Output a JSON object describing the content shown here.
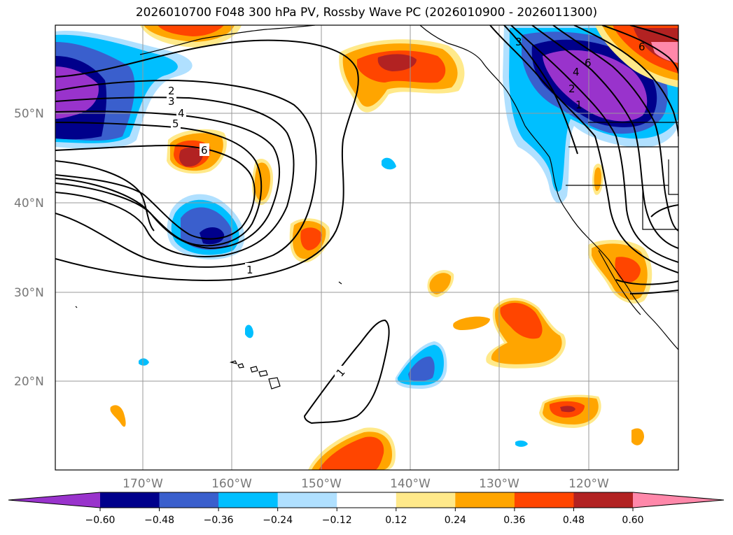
{
  "title": "2026010700 F048 300 hPa PV, Rossby Wave PC (2026010900 - 2026011300)",
  "map": {
    "lat_labels": [
      "50°N",
      "40°N",
      "30°N",
      "20°N"
    ],
    "lon_labels": [
      "170°W",
      "160°W",
      "150°W",
      "140°W",
      "130°W",
      "120°W"
    ],
    "contour_labels": [
      "1",
      "1",
      "2",
      "3",
      "4",
      "5",
      "6",
      "6",
      "3",
      "4",
      "2",
      "1",
      "6"
    ]
  },
  "colorbar": {
    "ticks": [
      "−0.60",
      "−0.48",
      "−0.36",
      "−0.24",
      "−0.12",
      "0.12",
      "0.24",
      "0.36",
      "0.48",
      "0.60"
    ],
    "colors": [
      "#9933cc",
      "#00008b",
      "#3a5fcd",
      "#00bfff",
      "#b0e0ff",
      "#ffffff",
      "#ffe98a",
      "#ffa500",
      "#ff4500",
      "#b22222",
      "#ff88aa"
    ]
  },
  "colors": {
    "pos_low": "#ffe98a",
    "pos_mid": "#ffa500",
    "pos_high": "#ff4500",
    "pos_max": "#b22222",
    "pos_ext": "#ff88aa",
    "neg_low": "#b0e0ff",
    "neg_mid": "#00bfff",
    "neg_high": "#3a5fcd",
    "neg_max": "#00008b",
    "neg_ext": "#9933cc"
  }
}
